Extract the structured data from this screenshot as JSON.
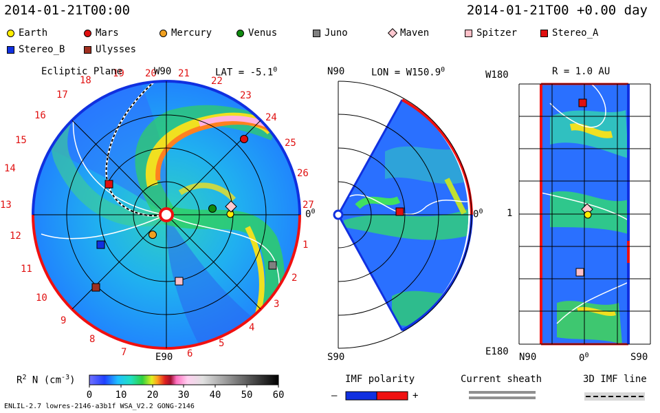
{
  "header": {
    "datetime_left": "2014-01-21T00:00",
    "datetime_right": "2014-01-21T00 +0.00 day"
  },
  "legend": [
    {
      "name": "Earth",
      "shape": "circle",
      "color": "#ffee00"
    },
    {
      "name": "Mars",
      "shape": "circle",
      "color": "#e01010"
    },
    {
      "name": "Mercury",
      "shape": "circle",
      "color": "#f0a020"
    },
    {
      "name": "Venus",
      "shape": "circle",
      "color": "#108a10"
    },
    {
      "name": "Juno",
      "shape": "square",
      "color": "#808080"
    },
    {
      "name": "Maven",
      "shape": "diamond",
      "color": "#ffc8d0"
    },
    {
      "name": "Spitzer",
      "shape": "square",
      "color": "#ffc0c8"
    },
    {
      "name": "Stereo_A",
      "shape": "square",
      "color": "#e01010"
    },
    {
      "name": "Stereo_B",
      "shape": "square",
      "color": "#1030e0"
    },
    {
      "name": "Ulysses",
      "shape": "square",
      "color": "#a03020"
    }
  ],
  "ecliptic": {
    "title": "Ecliptic Plane",
    "top_label": "W90",
    "bottom_label": "E90",
    "right_label": "0",
    "lat_label": "LAT = -5.1",
    "degree_mark": "0",
    "carrington_numbers": [
      "20",
      "21",
      "22",
      "23",
      "24",
      "25",
      "26",
      "27",
      "1",
      "2",
      "3",
      "4",
      "5",
      "6",
      "7",
      "8",
      "9",
      "10",
      "11",
      "12",
      "13",
      "14",
      "15",
      "16",
      "17",
      "18",
      "19"
    ]
  },
  "meridional": {
    "top_left": "N90",
    "bottom_left": "S90",
    "lon_label": "LON = W150.9",
    "degree_mark": "0",
    "right_label": "0"
  },
  "radial": {
    "r_label": "R = 1.0 AU",
    "top_left": "W180",
    "bottom_left": "E180",
    "mid_left": "1",
    "bottom_axis": [
      "N90",
      "0",
      "S90"
    ],
    "degree_mark": "0"
  },
  "colorbar": {
    "label": "R",
    "sup": "2",
    "label_rest": " N (cm",
    "sup2": "-3",
    "label_end": ")",
    "ticks": [
      "0",
      "10",
      "20",
      "30",
      "40",
      "50",
      "60"
    ]
  },
  "imf": {
    "title": "IMF polarity",
    "minus": "–",
    "plus": "+",
    "colors": {
      "negative": "#1030e0",
      "positive": "#f01010"
    }
  },
  "current_sheath": {
    "title": "Current sheath"
  },
  "imf_line": {
    "title": "3D IMF line"
  },
  "footer": {
    "model": "ENLIL-2.7 lowres-2146-a3b1f WSA_V2.2 GONG-2146"
  }
}
